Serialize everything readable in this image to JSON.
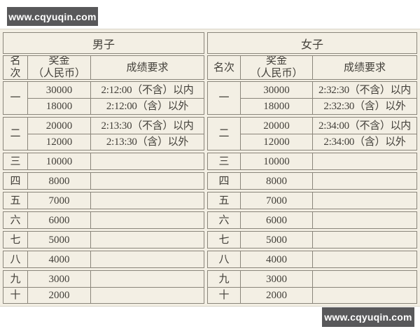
{
  "colors": {
    "page_bg": "#ffffff",
    "band_bg": "#f3efe4",
    "line": "#8a857a",
    "text": "#43403a",
    "watermark_bg": "#58585a",
    "watermark_text": "#ffffff"
  },
  "watermarks": {
    "top_left": "www.cqyuqin.com",
    "bottom_right": "www.cqyuqin.com"
  },
  "sections": [
    {
      "id": "men",
      "title": "男子",
      "columns": {
        "rank": "名次",
        "prize_line1": "奖金",
        "prize_line2": "（人民币）",
        "requirement": "成绩要求"
      },
      "groups": [
        {
          "span_rank": true,
          "rank": "一",
          "rows": [
            {
              "prize": "30000",
              "req": "2:12:00（不含）以内"
            },
            {
              "prize": "18000",
              "req": "2:12:00（含）以外"
            }
          ]
        },
        {
          "span_rank": true,
          "rank": "二",
          "rows": [
            {
              "prize": "20000",
              "req": "2:13:30（不含）以内"
            },
            {
              "prize": "12000",
              "req": "2:13:30（含）以外"
            }
          ]
        },
        {
          "span_rank": false,
          "rows": [
            {
              "rank": "三",
              "prize": "10000",
              "req": ""
            }
          ]
        },
        {
          "span_rank": false,
          "rows": [
            {
              "rank": "四",
              "prize": "8000",
              "req": ""
            }
          ]
        },
        {
          "span_rank": false,
          "rows": [
            {
              "rank": "五",
              "prize": "7000",
              "req": ""
            }
          ]
        },
        {
          "span_rank": false,
          "rows": [
            {
              "rank": "六",
              "prize": "6000",
              "req": ""
            }
          ]
        },
        {
          "span_rank": false,
          "rows": [
            {
              "rank": "七",
              "prize": "5000",
              "req": ""
            }
          ]
        },
        {
          "span_rank": false,
          "rows": [
            {
              "rank": "八",
              "prize": "4000",
              "req": ""
            }
          ]
        },
        {
          "span_rank": false,
          "rows": [
            {
              "rank": "九",
              "prize": "3000",
              "req": ""
            },
            {
              "rank": "十",
              "prize": "2000",
              "req": ""
            }
          ]
        }
      ]
    },
    {
      "id": "women",
      "title": "女子",
      "columns": {
        "rank": "名次",
        "prize_line1": "奖金",
        "prize_line2": "（人民币）",
        "requirement": "成绩要求"
      },
      "groups": [
        {
          "span_rank": true,
          "rank": "一",
          "rows": [
            {
              "prize": "30000",
              "req": "2:32:30（不含）以内"
            },
            {
              "prize": "18000",
              "req": "2:32:30（含）以外"
            }
          ]
        },
        {
          "span_rank": true,
          "rank": "二",
          "rows": [
            {
              "prize": "20000",
              "req": "2:34:00（不含）以内"
            },
            {
              "prize": "12000",
              "req": "2:34:00（含）以外"
            }
          ]
        },
        {
          "span_rank": false,
          "rows": [
            {
              "rank": "三",
              "prize": "10000",
              "req": ""
            }
          ]
        },
        {
          "span_rank": false,
          "rows": [
            {
              "rank": "四",
              "prize": "8000",
              "req": ""
            }
          ]
        },
        {
          "span_rank": false,
          "rows": [
            {
              "rank": "五",
              "prize": "7000",
              "req": ""
            }
          ]
        },
        {
          "span_rank": false,
          "rows": [
            {
              "rank": "六",
              "prize": "6000",
              "req": ""
            }
          ]
        },
        {
          "span_rank": false,
          "rows": [
            {
              "rank": "七",
              "prize": "5000",
              "req": ""
            }
          ]
        },
        {
          "span_rank": false,
          "rows": [
            {
              "rank": "八",
              "prize": "4000",
              "req": ""
            }
          ]
        },
        {
          "span_rank": false,
          "rows": [
            {
              "rank": "九",
              "prize": "3000",
              "req": ""
            },
            {
              "rank": "十",
              "prize": "2000",
              "req": ""
            }
          ]
        }
      ]
    }
  ]
}
